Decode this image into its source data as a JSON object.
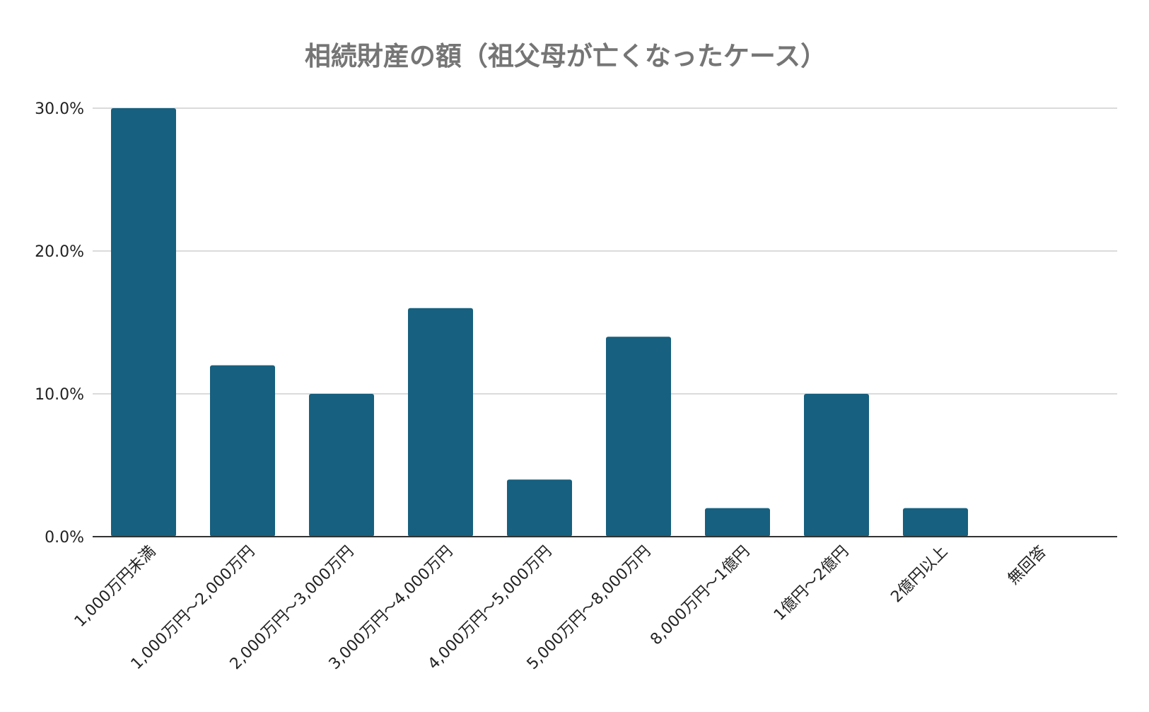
{
  "chart_data": {
    "type": "bar",
    "title": "相続財産の額（祖父母が亡くなったケース）",
    "categories": [
      "1,000万円未満",
      "1,000万円～2,000万円",
      "2,000万円～3,000万円",
      "3,000万円～4,000万円",
      "4,000万円～5,000万円",
      "5,000万円～8,000万円",
      "8,000万円～1億円",
      "1億円～2億円",
      "2億円以上",
      "無回答"
    ],
    "values": [
      30.0,
      12.0,
      10.0,
      16.0,
      4.0,
      14.0,
      2.0,
      10.0,
      2.0,
      0.0
    ],
    "ylim": [
      0,
      30
    ],
    "yticks": [
      {
        "value": 0,
        "label": "0.0%"
      },
      {
        "value": 10,
        "label": "10.0%"
      },
      {
        "value": 20,
        "label": "20.0%"
      },
      {
        "value": 30,
        "label": "30.0%"
      }
    ],
    "xlabel": "",
    "ylabel": "",
    "grid": true,
    "legend": "none",
    "bar_color": "#17607f"
  }
}
